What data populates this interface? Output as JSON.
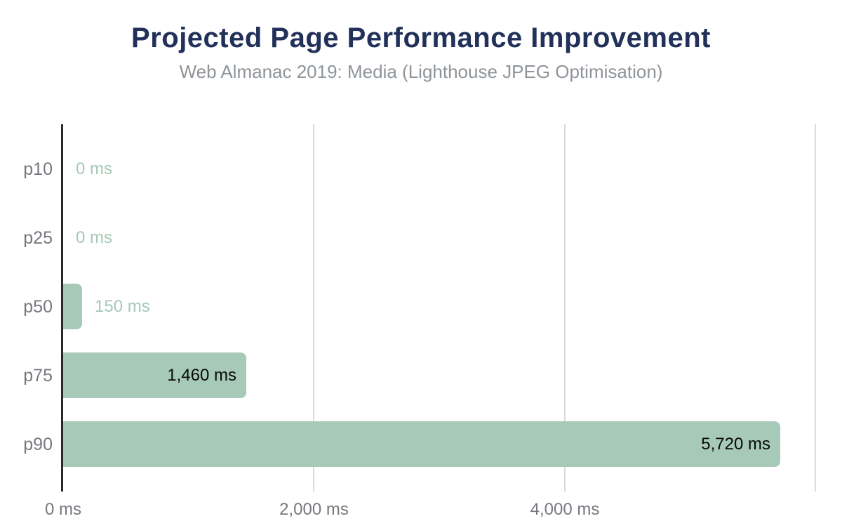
{
  "page": {
    "background": "#ffffff"
  },
  "chart_data": {
    "type": "bar",
    "orientation": "horizontal",
    "title": "Projected Page Performance Improvement",
    "subtitle": "Web Almanac 2019: Media (Lighthouse JPEG Optimisation)",
    "categories": [
      "p10",
      "p25",
      "p50",
      "p75",
      "p90"
    ],
    "values": [
      0,
      0,
      150,
      1460,
      5720
    ],
    "value_labels": [
      "0 ms",
      "0 ms",
      "150 ms",
      "1,460 ms",
      "5,720 ms"
    ],
    "unit": "ms",
    "xlabel": "",
    "ylabel": "",
    "xlim": [
      0,
      6070
    ],
    "x_ticks": [
      {
        "value": 0,
        "label": "0 ms"
      },
      {
        "value": 2000,
        "label": "2,000 ms"
      },
      {
        "value": 4000,
        "label": "4,000 ms"
      },
      {
        "value": 6000,
        "label": ""
      }
    ],
    "grid": "vertical gridlines only",
    "legend": "none",
    "colors": {
      "bar": "#a6c9b8",
      "title": "#22315a",
      "subtitle": "#8f9499",
      "axis_label": "#75797e",
      "value_label_inside": "#0a0a0a",
      "value_label_outside": "#a6c9b8",
      "axis_line": "#272727",
      "gridline": "#dadada",
      "background": "#ffffff"
    }
  }
}
